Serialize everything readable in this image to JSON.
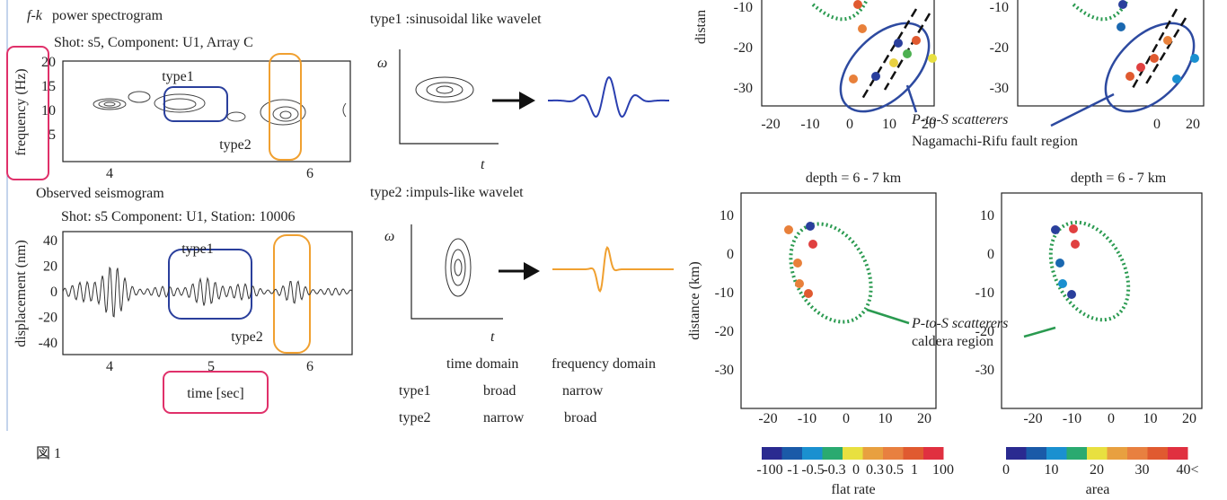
{
  "spectrogram": {
    "title_italic": "f-k",
    "title": "power spectrogram",
    "subtitle": "Shot: s5,  Component: U1, Array C",
    "y_label": "frequency (Hz)",
    "y_ticks": [
      "20",
      "15",
      "10",
      "5"
    ],
    "x_ticks": [
      "4",
      "6"
    ],
    "type1": "type1",
    "type2": "type2"
  },
  "seismogram": {
    "title": "Observed seismogram",
    "subtitle": "Shot: s5 Component: U1, Station: 10006",
    "y_label": "displacement (nm)",
    "y_ticks": [
      "40",
      "20",
      "0",
      "-20",
      "-40"
    ],
    "x_ticks": [
      "4",
      "5",
      "6"
    ],
    "x_label": "time [sec]",
    "type1": "type1",
    "type2": "type2"
  },
  "figure_label": "図 1",
  "wavelets": {
    "type1_title": "type1 :sinusoidal like wavelet",
    "type2_title": "type2 :impuls-like wavelet",
    "omega": "ω",
    "t": "t",
    "table": {
      "header": [
        "time  domain",
        "frequency domain"
      ],
      "rows": [
        [
          "type1",
          "broad",
          "narrow"
        ],
        [
          "type2",
          "narrow",
          "broad"
        ]
      ]
    }
  },
  "maps": {
    "top_y_label": "distan",
    "top_y_ticks": [
      "-10",
      "-20",
      "-30"
    ],
    "top_left_x_ticks": [
      "-20",
      "-10",
      "0",
      "10",
      "20"
    ],
    "top_right_x_ticks": [
      "0",
      "20"
    ],
    "fault_annotation": [
      "P-to-S scatterers",
      "Nagamachi-Rifu fault region"
    ],
    "bottom_title_left": "depth = 6 - 7 km",
    "bottom_title_right": "depth = 6 - 7 km",
    "bottom_y_label": "distance (km)",
    "bottom_y_ticks": [
      "10",
      "0",
      "-10",
      "-20",
      "-30"
    ],
    "bottom_left_x_ticks": [
      "-20",
      "-10",
      "0",
      "10",
      "20"
    ],
    "bottom_right_x_ticks": [
      "-20",
      "-10",
      "0",
      "10",
      "20"
    ],
    "caldera_annotation": [
      "P-to-S scatterers",
      "caldera region"
    ],
    "colorbar_left": {
      "ticks": [
        "-100",
        "-1",
        "-0.5",
        "-0.3",
        "0",
        "0.3",
        "0.5",
        "1",
        "100"
      ],
      "label": "flat rate"
    },
    "colorbar_right": {
      "ticks": [
        "0",
        "10",
        "20",
        "30",
        "40<"
      ],
      "label": "area"
    }
  }
}
